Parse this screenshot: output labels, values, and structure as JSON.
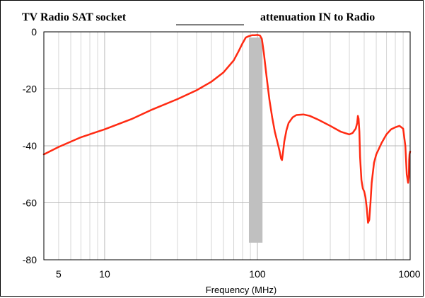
{
  "chart_data": {
    "type": "line",
    "title_left": "TV Radio SAT socket",
    "title_right": "attenuation IN to Radio",
    "title_line_visible": true,
    "xlabel": "Frequency (MHz)",
    "ylabel": "",
    "x_scale": "log",
    "xlim": [
      4,
      1000
    ],
    "ylim": [
      -80,
      0
    ],
    "x_ticks": [
      {
        "value": 5,
        "label": "5"
      },
      {
        "value": 10,
        "label": "10"
      },
      {
        "value": 100,
        "label": "100"
      },
      {
        "value": 1000,
        "label": "1000"
      }
    ],
    "y_ticks": [
      {
        "value": 0,
        "label": "0"
      },
      {
        "value": -20,
        "label": "-20"
      },
      {
        "value": -40,
        "label": "-40"
      },
      {
        "value": -60,
        "label": "-60"
      },
      {
        "value": -80,
        "label": "-80"
      }
    ],
    "grid": true,
    "passband": {
      "x_range": [
        88,
        108
      ],
      "y_range": [
        -74,
        -2
      ],
      "color": "#c0c0c0"
    },
    "series": [
      {
        "color": "#ff2a12",
        "x": [
          4,
          5,
          7,
          10,
          15,
          20,
          30,
          40,
          50,
          60,
          70,
          75,
          80,
          84,
          88,
          92,
          96,
          100,
          104,
          107,
          110,
          115,
          120,
          125,
          130,
          135,
          140,
          143,
          145,
          147,
          150,
          155,
          160,
          170,
          180,
          200,
          220,
          250,
          300,
          350,
          400,
          420,
          440,
          450,
          455,
          460,
          465,
          470,
          480,
          490,
          500,
          510,
          520,
          530,
          540,
          550,
          560,
          580,
          600,
          650,
          700,
          750,
          800,
          850,
          900,
          930,
          950,
          970,
          980,
          985,
          990,
          1000
        ],
        "y": [
          -43,
          -40.4,
          -37,
          -34.2,
          -30.6,
          -27.5,
          -23.6,
          -20.5,
          -17.5,
          -14.2,
          -10,
          -7,
          -4,
          -2,
          -1.5,
          -1.2,
          -1.2,
          -1.1,
          -1.3,
          -2.5,
          -7,
          -16,
          -24,
          -30,
          -35,
          -38.5,
          -42,
          -44.5,
          -45,
          -42.5,
          -38.5,
          -34.5,
          -32,
          -30,
          -29.2,
          -29,
          -29.5,
          -30.8,
          -33,
          -35,
          -36,
          -35.5,
          -34,
          -32,
          -29.5,
          -30.5,
          -35,
          -44,
          -52,
          -55,
          -56,
          -58,
          -62,
          -67,
          -66,
          -60,
          -53,
          -46,
          -43,
          -39,
          -36,
          -34.2,
          -33.5,
          -33,
          -34,
          -40,
          -50,
          -53,
          -51,
          -45,
          -43,
          -42
        ]
      }
    ]
  }
}
